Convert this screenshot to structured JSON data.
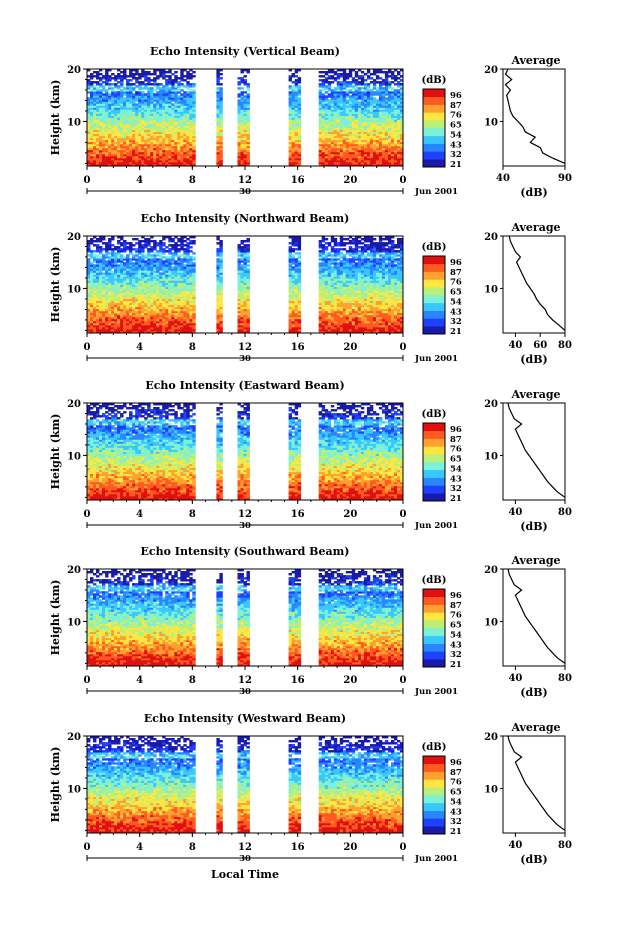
{
  "figure": {
    "xlabel": "Local Time",
    "date_label": "Jun 2001",
    "day_label": "30",
    "colorbar_unit": "(dB)",
    "colorbar_ticks": [
      "96",
      "87",
      "76",
      "65",
      "54",
      "43",
      "32",
      "21"
    ],
    "profile_title": "Average",
    "profile_xlabel": "(dB)"
  },
  "colors": {
    "scale": [
      "#1a1aa8",
      "#2040ff",
      "#2a86ff",
      "#38c8ff",
      "#7df0d8",
      "#b8f07a",
      "#ffe640",
      "#ffa030",
      "#ff5a20",
      "#e01010"
    ]
  },
  "chart_data": [
    {
      "type": "heatmap",
      "title": "Echo Intensity (Vertical Beam)",
      "xlabel": "",
      "ylabel": "Height (km)",
      "xlim": [
        0,
        24
      ],
      "ylim": [
        1.5,
        20
      ],
      "xticks": [
        "0",
        "4",
        "8",
        "12",
        "16",
        "20",
        "0"
      ],
      "yticks": [
        "20",
        "10"
      ],
      "colorbar_ticks": [
        "96",
        "87",
        "76",
        "65",
        "54",
        "43",
        "32",
        "21"
      ],
      "data_gaps_hours": [
        [
          8.2,
          9.8
        ],
        [
          10.3,
          11.4
        ],
        [
          12.3,
          15.4
        ],
        [
          16.3,
          17.7
        ]
      ],
      "profile": {
        "title": "Average",
        "xlabel": "(dB)",
        "xticks": [
          "40",
          "90"
        ],
        "xlim": [
          40,
          90
        ],
        "yticks": [
          "20",
          "10"
        ],
        "height_km": [
          2,
          3,
          4,
          5,
          6,
          7,
          8,
          9,
          10,
          11,
          12,
          13,
          14,
          15,
          16,
          17,
          18,
          19,
          20
        ],
        "intensity_db": [
          90,
          80,
          72,
          70,
          62,
          66,
          58,
          56,
          52,
          48,
          46,
          45,
          44,
          43,
          46,
          42,
          47,
          42,
          44
        ]
      }
    },
    {
      "type": "heatmap",
      "title": "Echo Intensity (Northward Beam)",
      "xlabel": "",
      "ylabel": "Height (km)",
      "xlim": [
        0,
        24
      ],
      "ylim": [
        1.5,
        20
      ],
      "xticks": [
        "0",
        "4",
        "8",
        "12",
        "16",
        "20",
        "0"
      ],
      "yticks": [
        "20",
        "10"
      ],
      "colorbar_ticks": [
        "96",
        "87",
        "76",
        "65",
        "54",
        "43",
        "32",
        "21"
      ],
      "data_gaps_hours": [
        [
          8.2,
          9.8
        ],
        [
          10.3,
          11.4
        ],
        [
          12.3,
          15.4
        ],
        [
          16.3,
          17.7
        ]
      ],
      "profile": {
        "title": "Average",
        "xlabel": "(dB)",
        "xticks": [
          "40",
          "60",
          "80"
        ],
        "xlim": [
          30,
          80
        ],
        "yticks": [
          "20",
          "10"
        ],
        "height_km": [
          2,
          3,
          4,
          5,
          6,
          7,
          8,
          9,
          10,
          11,
          12,
          13,
          14,
          15,
          16,
          17,
          18,
          19,
          20
        ],
        "intensity_db": [
          80,
          75,
          70,
          66,
          64,
          60,
          57,
          55,
          52,
          49,
          47,
          45,
          43,
          41,
          44,
          40,
          38,
          36,
          35
        ]
      }
    },
    {
      "type": "heatmap",
      "title": "Echo Intensity (Eastward Beam)",
      "xlabel": "",
      "ylabel": "Height (km)",
      "xlim": [
        0,
        24
      ],
      "ylim": [
        1.5,
        20
      ],
      "xticks": [
        "0",
        "4",
        "8",
        "12",
        "16",
        "20",
        "0"
      ],
      "yticks": [
        "20",
        "10"
      ],
      "colorbar_ticks": [
        "96",
        "87",
        "76",
        "65",
        "54",
        "43",
        "32",
        "21"
      ],
      "data_gaps_hours": [
        [
          8.2,
          9.8
        ],
        [
          10.3,
          11.4
        ],
        [
          12.3,
          15.4
        ],
        [
          16.3,
          17.7
        ]
      ],
      "profile": {
        "title": "Average",
        "xlabel": "(dB)",
        "xticks": [
          "40",
          "80"
        ],
        "xlim": [
          30,
          80
        ],
        "yticks": [
          "20",
          "10"
        ],
        "height_km": [
          2,
          3,
          4,
          5,
          6,
          7,
          8,
          9,
          10,
          11,
          12,
          13,
          14,
          15,
          16,
          17,
          18,
          19,
          20
        ],
        "intensity_db": [
          80,
          74,
          70,
          66,
          63,
          60,
          57,
          54,
          51,
          48,
          46,
          44,
          42,
          40,
          45,
          39,
          37,
          35,
          34
        ]
      }
    },
    {
      "type": "heatmap",
      "title": "Echo Intensity (Southward Beam)",
      "xlabel": "",
      "ylabel": "Height (km)",
      "xlim": [
        0,
        24
      ],
      "ylim": [
        1.5,
        20
      ],
      "xticks": [
        "0",
        "4",
        "8",
        "12",
        "16",
        "20",
        "0"
      ],
      "yticks": [
        "20",
        "10"
      ],
      "colorbar_ticks": [
        "96",
        "87",
        "76",
        "65",
        "54",
        "43",
        "32",
        "21"
      ],
      "data_gaps_hours": [
        [
          8.2,
          9.8
        ],
        [
          10.3,
          11.4
        ],
        [
          12.3,
          15.4
        ],
        [
          16.3,
          17.7
        ]
      ],
      "profile": {
        "title": "Average",
        "xlabel": "(dB)",
        "xticks": [
          "40",
          "80"
        ],
        "xlim": [
          30,
          80
        ],
        "yticks": [
          "20",
          "10"
        ],
        "height_km": [
          2,
          3,
          4,
          5,
          6,
          7,
          8,
          9,
          10,
          11,
          12,
          13,
          14,
          15,
          16,
          17,
          18,
          19,
          20
        ],
        "intensity_db": [
          80,
          74,
          70,
          66,
          63,
          60,
          57,
          54,
          51,
          48,
          46,
          44,
          42,
          40,
          45,
          39,
          37,
          35,
          34
        ]
      }
    },
    {
      "type": "heatmap",
      "title": "Echo Intensity (Westward Beam)",
      "xlabel": "Local Time",
      "ylabel": "Height (km)",
      "xlim": [
        0,
        24
      ],
      "ylim": [
        1.5,
        20
      ],
      "xticks": [
        "0",
        "4",
        "8",
        "12",
        "16",
        "20",
        "0"
      ],
      "yticks": [
        "20",
        "10"
      ],
      "colorbar_ticks": [
        "96",
        "87",
        "76",
        "65",
        "54",
        "43",
        "32",
        "21"
      ],
      "data_gaps_hours": [
        [
          8.2,
          9.8
        ],
        [
          10.3,
          11.4
        ],
        [
          12.3,
          15.4
        ],
        [
          16.3,
          17.7
        ]
      ],
      "profile": {
        "title": "Average",
        "xlabel": "(dB)",
        "xticks": [
          "40",
          "80"
        ],
        "xlim": [
          30,
          80
        ],
        "yticks": [
          "20",
          "10"
        ],
        "height_km": [
          2,
          3,
          4,
          5,
          6,
          7,
          8,
          9,
          10,
          11,
          12,
          13,
          14,
          15,
          16,
          17,
          18,
          19,
          20
        ],
        "intensity_db": [
          80,
          74,
          70,
          66,
          63,
          60,
          57,
          54,
          51,
          48,
          46,
          44,
          42,
          40,
          45,
          39,
          37,
          35,
          34
        ]
      }
    }
  ]
}
